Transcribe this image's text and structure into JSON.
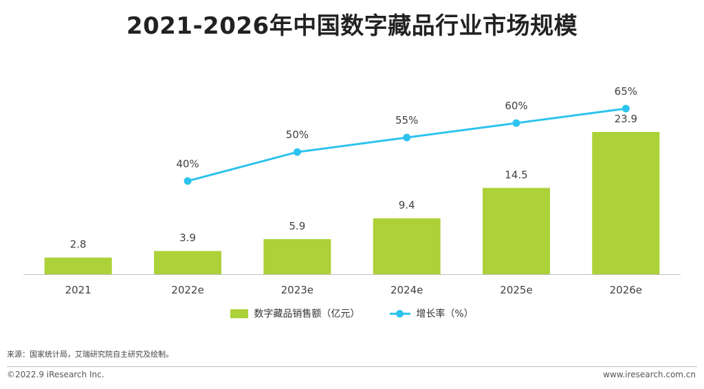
{
  "colors": {
    "bar": "#acd139",
    "line": "#2ec3ee",
    "axis": "#bfbfbf",
    "title": "#222222"
  },
  "chart_data": {
    "type": "bar",
    "title": "2021-2026年中国数字藏品行业市场规模",
    "categories": [
      "2021",
      "2022e",
      "2023e",
      "2024e",
      "2025e",
      "2026e"
    ],
    "series": [
      {
        "name": "数字藏品销售额（亿元）",
        "kind": "bar",
        "values": [
          2.8,
          3.9,
          5.9,
          9.4,
          14.5,
          23.9
        ],
        "labels": [
          "2.8",
          "3.9",
          "5.9",
          "9.4",
          "14.5",
          "23.9"
        ]
      },
      {
        "name": "增长率（%）",
        "kind": "line",
        "values": [
          null,
          40,
          50,
          55,
          60,
          65
        ],
        "labels": [
          "",
          "40%",
          "50%",
          "55%",
          "60%",
          "65%"
        ]
      }
    ],
    "ylim": [
      0,
      23.9
    ],
    "y2lim": [
      0,
      65
    ],
    "legend_position": "bottom",
    "grid": false
  },
  "legend": {
    "bar_label": "数字藏品销售额（亿元）",
    "line_label": "增长率（%）"
  },
  "source": "来源：国家统计局，艾瑞研究院自主研究及绘制。",
  "copyright": "©2022.9 iResearch Inc.",
  "website": "www.iresearch.com.cn"
}
